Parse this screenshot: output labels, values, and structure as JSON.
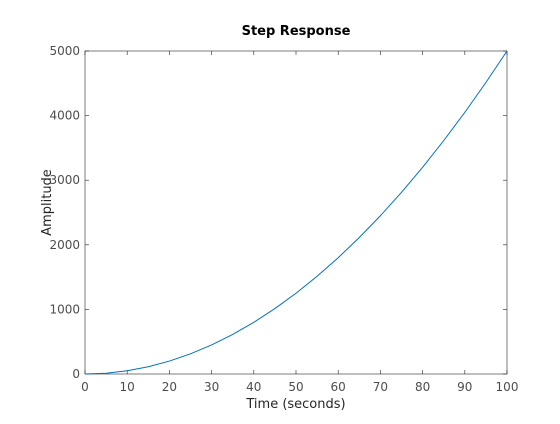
{
  "chart_data": {
    "type": "line",
    "title": "Step Response",
    "xlabel": "Time (seconds)",
    "ylabel": "Amplitude",
    "xlim": [
      0,
      100
    ],
    "ylim": [
      0,
      5000
    ],
    "xticks": [
      0,
      10,
      20,
      30,
      40,
      50,
      60,
      70,
      80,
      90,
      100
    ],
    "yticks": [
      0,
      1000,
      2000,
      3000,
      4000,
      5000
    ],
    "grid": false,
    "box": true,
    "series": [
      {
        "color": "#0072bd",
        "x": [
          0,
          5,
          10,
          15,
          20,
          25,
          30,
          35,
          40,
          45,
          50,
          55,
          60,
          65,
          70,
          75,
          80,
          85,
          90,
          95,
          100
        ],
        "y": [
          0,
          12.5,
          50,
          112.5,
          200,
          312.5,
          450,
          612.5,
          800,
          1012.5,
          1250,
          1512.5,
          1800,
          2112.5,
          2450,
          2812.5,
          3200,
          3612.5,
          4050,
          4512.5,
          5000
        ]
      }
    ]
  }
}
